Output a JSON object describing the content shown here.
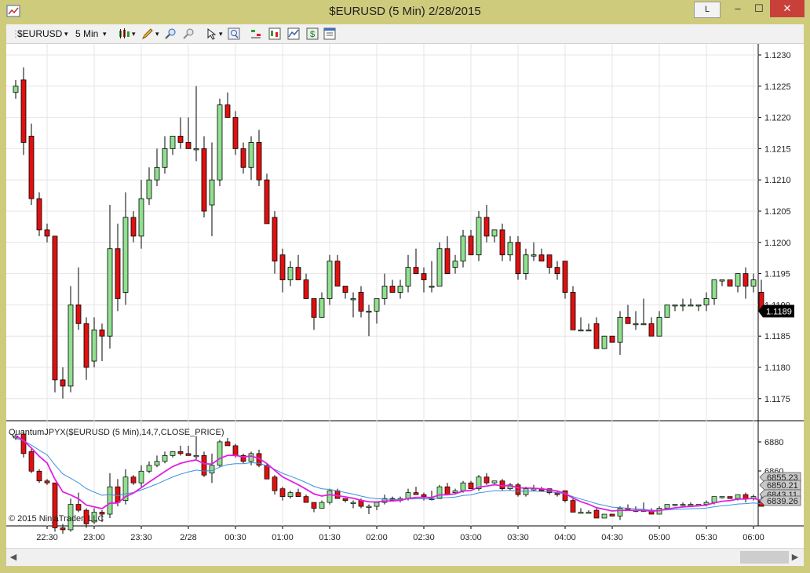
{
  "window": {
    "title": "$EURUSD (5 Min)  2/28/2015",
    "btn_L": "L",
    "btn_min": "–",
    "btn_max": "☐",
    "btn_close": "✕"
  },
  "toolbar": {
    "instrument": "$EURUSD",
    "interval": "5 Min",
    "dropdown": "▾",
    "icons": [
      "chart-style-icon",
      "drawing-tool-icon",
      "zoom-in-icon",
      "zoom-out-icon",
      "cursor-icon",
      "search-icon",
      "indicators-icon",
      "strategies-icon",
      "market-analyzer-icon",
      "dollar-icon",
      "properties-icon"
    ]
  },
  "chart": {
    "price_axis": [
      "1.1230",
      "1.1225",
      "1.1220",
      "1.1215",
      "1.1210",
      "1.1205",
      "1.1200",
      "1.1195",
      "1.1190",
      "1.1185",
      "1.1180",
      "1.1175"
    ],
    "last_price": "1.1189",
    "time_axis": [
      "22:30",
      "23:00",
      "23:30",
      "2/28",
      "00:30",
      "01:00",
      "01:30",
      "02:00",
      "02:30",
      "03:00",
      "03:30",
      "04:00",
      "04:30",
      "05:00",
      "05:30",
      "06:00"
    ],
    "indicator_label": "QuantumJPYX($EURUSD (5 Min),14,7,CLOSE_PRICE)",
    "indicator_axis": [
      "6880",
      "6860"
    ],
    "indicator_values": [
      "6855.23",
      "6850.21",
      "6843.11",
      "6839.26"
    ],
    "copyright": "© 2015 NinjaTrader, LLC",
    "colors": {
      "up": "#90e090",
      "down": "#e01010",
      "ma_fast": "#e020e0",
      "ma_slow": "#3a8fe0"
    }
  },
  "chart_data": {
    "type": "candlestick",
    "ylim": [
      1.1172,
      1.1232
    ],
    "candles": [
      {
        "o": 1.1224,
        "h": 1.1226,
        "l": 1.1223,
        "c": 1.1225
      },
      {
        "o": 1.1226,
        "h": 1.1228,
        "l": 1.1214,
        "c": 1.1216
      },
      {
        "o": 1.1217,
        "h": 1.1219,
        "l": 1.1206,
        "c": 1.1207
      },
      {
        "o": 1.1207,
        "h": 1.1208,
        "l": 1.1201,
        "c": 1.1202
      },
      {
        "o": 1.1202,
        "h": 1.1203,
        "l": 1.12,
        "c": 1.1201
      },
      {
        "o": 1.1201,
        "h": 1.1201,
        "l": 1.1176,
        "c": 1.1178
      },
      {
        "o": 1.1178,
        "h": 1.118,
        "l": 1.1175,
        "c": 1.1177
      },
      {
        "o": 1.1177,
        "h": 1.1193,
        "l": 1.1176,
        "c": 1.119
      },
      {
        "o": 1.119,
        "h": 1.1196,
        "l": 1.1186,
        "c": 1.1187
      },
      {
        "o": 1.1187,
        "h": 1.1188,
        "l": 1.1178,
        "c": 1.118
      },
      {
        "o": 1.1181,
        "h": 1.1188,
        "l": 1.118,
        "c": 1.1186
      },
      {
        "o": 1.1186,
        "h": 1.1187,
        "l": 1.1181,
        "c": 1.1185
      },
      {
        "o": 1.1185,
        "h": 1.1206,
        "l": 1.1183,
        "c": 1.1199
      },
      {
        "o": 1.1199,
        "h": 1.1203,
        "l": 1.1189,
        "c": 1.1191
      },
      {
        "o": 1.1192,
        "h": 1.1208,
        "l": 1.119,
        "c": 1.1204
      },
      {
        "o": 1.1204,
        "h": 1.1205,
        "l": 1.12,
        "c": 1.1201
      },
      {
        "o": 1.1201,
        "h": 1.121,
        "l": 1.1199,
        "c": 1.1207
      },
      {
        "o": 1.1207,
        "h": 1.1212,
        "l": 1.1206,
        "c": 1.121
      },
      {
        "o": 1.121,
        "h": 1.1215,
        "l": 1.1209,
        "c": 1.1212
      },
      {
        "o": 1.1212,
        "h": 1.1217,
        "l": 1.1211,
        "c": 1.1215
      },
      {
        "o": 1.1215,
        "h": 1.1217,
        "l": 1.1214,
        "c": 1.1217
      },
      {
        "o": 1.1217,
        "h": 1.122,
        "l": 1.1215,
        "c": 1.1216
      },
      {
        "o": 1.1216,
        "h": 1.122,
        "l": 1.1215,
        "c": 1.1215
      },
      {
        "o": 1.1215,
        "h": 1.1225,
        "l": 1.1213,
        "c": 1.1215
      },
      {
        "o": 1.1215,
        "h": 1.1217,
        "l": 1.1204,
        "c": 1.1205
      },
      {
        "o": 1.1206,
        "h": 1.1216,
        "l": 1.1201,
        "c": 1.121
      },
      {
        "o": 1.121,
        "h": 1.1223,
        "l": 1.1209,
        "c": 1.1222
      },
      {
        "o": 1.1222,
        "h": 1.1224,
        "l": 1.122,
        "c": 1.122
      },
      {
        "o": 1.122,
        "h": 1.1221,
        "l": 1.1214,
        "c": 1.1215
      },
      {
        "o": 1.1215,
        "h": 1.1216,
        "l": 1.1211,
        "c": 1.1212
      },
      {
        "o": 1.1212,
        "h": 1.1217,
        "l": 1.121,
        "c": 1.1216
      },
      {
        "o": 1.1216,
        "h": 1.1218,
        "l": 1.1209,
        "c": 1.121
      },
      {
        "o": 1.121,
        "h": 1.1211,
        "l": 1.1203,
        "c": 1.1203
      },
      {
        "o": 1.1204,
        "h": 1.1205,
        "l": 1.1195,
        "c": 1.1197
      },
      {
        "o": 1.1198,
        "h": 1.1199,
        "l": 1.1192,
        "c": 1.1194
      },
      {
        "o": 1.1194,
        "h": 1.1197,
        "l": 1.1193,
        "c": 1.1196
      },
      {
        "o": 1.1196,
        "h": 1.1198,
        "l": 1.1194,
        "c": 1.1194
      },
      {
        "o": 1.1194,
        "h": 1.1195,
        "l": 1.1191,
        "c": 1.1191
      },
      {
        "o": 1.1191,
        "h": 1.1191,
        "l": 1.1186,
        "c": 1.1188
      },
      {
        "o": 1.1188,
        "h": 1.1192,
        "l": 1.1188,
        "c": 1.1191
      },
      {
        "o": 1.1191,
        "h": 1.1198,
        "l": 1.119,
        "c": 1.1197
      },
      {
        "o": 1.1197,
        "h": 1.1198,
        "l": 1.1193,
        "c": 1.1193
      },
      {
        "o": 1.1193,
        "h": 1.1193,
        "l": 1.1191,
        "c": 1.1192
      },
      {
        "o": 1.1191,
        "h": 1.1192,
        "l": 1.1188,
        "c": 1.1191
      },
      {
        "o": 1.1192,
        "h": 1.1193,
        "l": 1.1188,
        "c": 1.1189
      },
      {
        "o": 1.1189,
        "h": 1.119,
        "l": 1.1185,
        "c": 1.1189
      },
      {
        "o": 1.1189,
        "h": 1.1191,
        "l": 1.1187,
        "c": 1.1191
      },
      {
        "o": 1.1191,
        "h": 1.1195,
        "l": 1.119,
        "c": 1.1193
      },
      {
        "o": 1.1193,
        "h": 1.1194,
        "l": 1.1192,
        "c": 1.1192
      },
      {
        "o": 1.1192,
        "h": 1.1194,
        "l": 1.1191,
        "c": 1.1193
      },
      {
        "o": 1.1193,
        "h": 1.1198,
        "l": 1.1192,
        "c": 1.1196
      },
      {
        "o": 1.1196,
        "h": 1.1199,
        "l": 1.1195,
        "c": 1.1195
      },
      {
        "o": 1.1195,
        "h": 1.1196,
        "l": 1.1192,
        "c": 1.1194
      },
      {
        "o": 1.1193,
        "h": 1.1197,
        "l": 1.1192,
        "c": 1.1193
      },
      {
        "o": 1.1193,
        "h": 1.12,
        "l": 1.1193,
        "c": 1.1199
      },
      {
        "o": 1.1199,
        "h": 1.1201,
        "l": 1.1195,
        "c": 1.1195
      },
      {
        "o": 1.1196,
        "h": 1.1198,
        "l": 1.1195,
        "c": 1.1197
      },
      {
        "o": 1.1197,
        "h": 1.1202,
        "l": 1.1196,
        "c": 1.1201
      },
      {
        "o": 1.1201,
        "h": 1.1202,
        "l": 1.1198,
        "c": 1.1198
      },
      {
        "o": 1.1198,
        "h": 1.1205,
        "l": 1.1197,
        "c": 1.1204
      },
      {
        "o": 1.1204,
        "h": 1.1206,
        "l": 1.12,
        "c": 1.1201
      },
      {
        "o": 1.1201,
        "h": 1.1202,
        "l": 1.12,
        "c": 1.1202
      },
      {
        "o": 1.1202,
        "h": 1.1203,
        "l": 1.1197,
        "c": 1.1198
      },
      {
        "o": 1.1198,
        "h": 1.1201,
        "l": 1.1197,
        "c": 1.12
      },
      {
        "o": 1.12,
        "h": 1.1201,
        "l": 1.1194,
        "c": 1.1195
      },
      {
        "o": 1.1195,
        "h": 1.1199,
        "l": 1.1194,
        "c": 1.1198
      },
      {
        "o": 1.1198,
        "h": 1.12,
        "l": 1.1197,
        "c": 1.1198
      },
      {
        "o": 1.1198,
        "h": 1.1199,
        "l": 1.1197,
        "c": 1.1197
      },
      {
        "o": 1.1198,
        "h": 1.1198,
        "l": 1.1195,
        "c": 1.1196
      },
      {
        "o": 1.1196,
        "h": 1.1197,
        "l": 1.1194,
        "c": 1.1195
      },
      {
        "o": 1.1197,
        "h": 1.1197,
        "l": 1.1191,
        "c": 1.1192
      },
      {
        "o": 1.1192,
        "h": 1.1193,
        "l": 1.1186,
        "c": 1.1186
      },
      {
        "o": 1.1186,
        "h": 1.1188,
        "l": 1.1186,
        "c": 1.1186
      },
      {
        "o": 1.1186,
        "h": 1.1187,
        "l": 1.1186,
        "c": 1.1186
      },
      {
        "o": 1.1187,
        "h": 1.1188,
        "l": 1.1183,
        "c": 1.1183
      },
      {
        "o": 1.1183,
        "h": 1.1185,
        "l": 1.1183,
        "c": 1.1185
      },
      {
        "o": 1.1185,
        "h": 1.1185,
        "l": 1.1184,
        "c": 1.1184
      },
      {
        "o": 1.1184,
        "h": 1.1189,
        "l": 1.1182,
        "c": 1.1188
      },
      {
        "o": 1.1188,
        "h": 1.119,
        "l": 1.1187,
        "c": 1.1187
      },
      {
        "o": 1.1187,
        "h": 1.1189,
        "l": 1.1186,
        "c": 1.1187
      },
      {
        "o": 1.1187,
        "h": 1.1191,
        "l": 1.1187,
        "c": 1.1187
      },
      {
        "o": 1.1187,
        "h": 1.1188,
        "l": 1.1185,
        "c": 1.1185
      },
      {
        "o": 1.1185,
        "h": 1.1189,
        "l": 1.1185,
        "c": 1.1188
      },
      {
        "o": 1.1188,
        "h": 1.119,
        "l": 1.1188,
        "c": 1.119
      },
      {
        "o": 1.119,
        "h": 1.119,
        "l": 1.1189,
        "c": 1.119
      },
      {
        "o": 1.119,
        "h": 1.1191,
        "l": 1.1189,
        "c": 1.119
      },
      {
        "o": 1.119,
        "h": 1.1191,
        "l": 1.119,
        "c": 1.119
      },
      {
        "o": 1.119,
        "h": 1.119,
        "l": 1.1189,
        "c": 1.119
      },
      {
        "o": 1.119,
        "h": 1.1192,
        "l": 1.1189,
        "c": 1.1191
      },
      {
        "o": 1.1191,
        "h": 1.1194,
        "l": 1.119,
        "c": 1.1194
      },
      {
        "o": 1.1194,
        "h": 1.1194,
        "l": 1.1193,
        "c": 1.1194
      },
      {
        "o": 1.1194,
        "h": 1.1194,
        "l": 1.1193,
        "c": 1.1193
      },
      {
        "o": 1.1193,
        "h": 1.1195,
        "l": 1.1192,
        "c": 1.1195
      },
      {
        "o": 1.1195,
        "h": 1.1196,
        "l": 1.1191,
        "c": 1.1193
      },
      {
        "o": 1.1193,
        "h": 1.1195,
        "l": 1.1192,
        "c": 1.1194
      },
      {
        "o": 1.1192,
        "h": 1.1194,
        "l": 1.1189,
        "c": 1.1189
      }
    ]
  }
}
